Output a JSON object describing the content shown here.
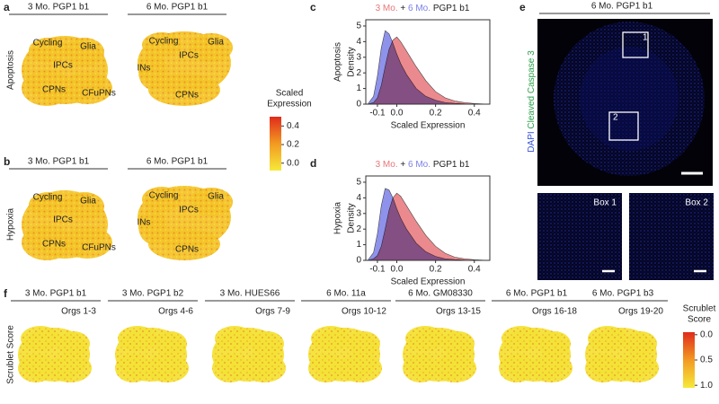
{
  "panels": {
    "a": {
      "label": "a",
      "titles": [
        "3 Mo. PGP1 b1",
        "6 Mo. PGP1 b1"
      ],
      "row_label": "Apoptosis",
      "left_clusters": [
        "Cycling",
        "Glia",
        "IPCs",
        "CPNs",
        "CFuPNs"
      ],
      "right_clusters": [
        "Cycling",
        "Glia",
        "INs",
        "IPCs",
        "CPNs"
      ]
    },
    "b": {
      "label": "b",
      "titles": [
        "3 Mo. PGP1 b1",
        "6 Mo. PGP1 b1"
      ],
      "row_label": "Hypoxia",
      "left_clusters": [
        "Cycling",
        "Glia",
        "IPCs",
        "CPNs",
        "CFuPNs"
      ],
      "right_clusters": [
        "Cycling",
        "Glia",
        "INs",
        "IPCs",
        "CPNs"
      ]
    },
    "expression_colorbar": {
      "title_lines": [
        "Scaled",
        "Expression"
      ],
      "lim": [
        -0.08,
        0.5
      ],
      "ticks": [
        {
          "value": 0,
          "label": "0.0"
        },
        0.2,
        0.4
      ],
      "colors": [
        "#f6e93a",
        "#f29a22",
        "#e02b1c"
      ]
    },
    "e": {
      "label": "e",
      "title": "6 Mo. PGP1 b1",
      "stain_labels": [
        "DAPI",
        "Cleaved Caspase 3"
      ],
      "boxes": [
        "1",
        "2"
      ],
      "insets": [
        "Box 1",
        "Box 2"
      ]
    },
    "f": {
      "label": "f",
      "row_label": "Scrublet Score",
      "columns": [
        {
          "title": "3 Mo. PGP1 b1",
          "orgs": "Orgs 1-3"
        },
        {
          "title": "3 Mo. PGP1 b2",
          "orgs": "Orgs 4-6"
        },
        {
          "title": "3 Mo. HUES66",
          "orgs": "Orgs 7-9"
        },
        {
          "title": "6 Mo. 11a",
          "orgs": "Orgs 10-12"
        },
        {
          "title": "6 Mo. GM08330",
          "orgs": "Orgs 13-15"
        },
        {
          "title": "6 Mo. PGP1 b1",
          "orgs": "Orgs 16-18"
        },
        {
          "title": "6 Mo. PGP1 b3",
          "orgs": "Orgs 19-20"
        }
      ],
      "colorbar": {
        "title_lines": [
          "Scrublet",
          "Score"
        ],
        "lim": [
          -0.05,
          1.05
        ],
        "reversed": true,
        "ticks": [
          {
            "value": 0,
            "label": "0.0"
          },
          0.5,
          {
            "value": 1,
            "label": "1.0"
          }
        ],
        "colors": [
          "#e02b1c",
          "#f29a22",
          "#f6e93a"
        ]
      }
    }
  },
  "chart_data": [
    {
      "type": "area",
      "panel_label": "c",
      "title": "PGP1 b1",
      "title_join": "+",
      "row_label": "Apoptosis",
      "xlabel": "Scaled Expression",
      "ylabel": "Density",
      "x": [
        -0.15,
        -0.12,
        -0.1,
        -0.08,
        -0.06,
        -0.04,
        -0.02,
        0,
        0.02,
        0.05,
        0.1,
        0.15,
        0.2,
        0.25,
        0.3,
        0.35,
        0.4,
        0.45
      ],
      "series": [
        {
          "name": "3 Mo.",
          "color": "#e8767a",
          "values": [
            0,
            0.1,
            0.4,
            1.2,
            2.4,
            3.5,
            4.1,
            4.3,
            4.0,
            3.4,
            2.4,
            1.5,
            0.8,
            0.4,
            0.2,
            0.1,
            0.04,
            0.01
          ]
        },
        {
          "name": "6 Mo.",
          "color": "#7b7fe6",
          "values": [
            0,
            0.5,
            1.8,
            3.6,
            4.7,
            4.5,
            3.9,
            3.2,
            2.6,
            1.9,
            1.0,
            0.5,
            0.25,
            0.1,
            0.05,
            0.02,
            0.01,
            0
          ]
        }
      ],
      "xlim": [
        -0.16,
        0.48
      ],
      "ylim": [
        0,
        5.4
      ],
      "xticks": [
        -0.1,
        {
          "value": 0,
          "label": "0.0"
        },
        0.2,
        0.4
      ],
      "yticks": [
        0,
        1,
        2,
        3,
        4,
        5
      ]
    },
    {
      "type": "area",
      "panel_label": "d",
      "title": "PGP1 b1",
      "title_join": "+",
      "row_label": "Hypoxia",
      "xlabel": "Scaled Expression",
      "ylabel": "Density",
      "x": [
        -0.15,
        -0.12,
        -0.1,
        -0.08,
        -0.06,
        -0.04,
        -0.02,
        0,
        0.02,
        0.05,
        0.1,
        0.15,
        0.2,
        0.25,
        0.3,
        0.35,
        0.4,
        0.45
      ],
      "series": [
        {
          "name": "3 Mo.",
          "color": "#e8767a",
          "values": [
            0,
            0.1,
            0.3,
            0.9,
            2.0,
            3.2,
            4.0,
            4.3,
            4.1,
            3.5,
            2.5,
            1.6,
            0.9,
            0.45,
            0.2,
            0.1,
            0.04,
            0.01
          ]
        },
        {
          "name": "6 Mo.",
          "color": "#7b7fe6",
          "values": [
            0,
            0.5,
            1.7,
            3.5,
            4.6,
            4.5,
            4.0,
            3.3,
            2.7,
            2.0,
            1.1,
            0.55,
            0.25,
            0.1,
            0.05,
            0.02,
            0.01,
            0
          ]
        }
      ],
      "xlim": [
        -0.16,
        0.48
      ],
      "ylim": [
        0,
        5.4
      ],
      "xticks": [
        -0.1,
        {
          "value": 0,
          "label": "0.0"
        },
        0.2,
        0.4
      ],
      "yticks": [
        0,
        1,
        2,
        3,
        4,
        5
      ]
    }
  ]
}
